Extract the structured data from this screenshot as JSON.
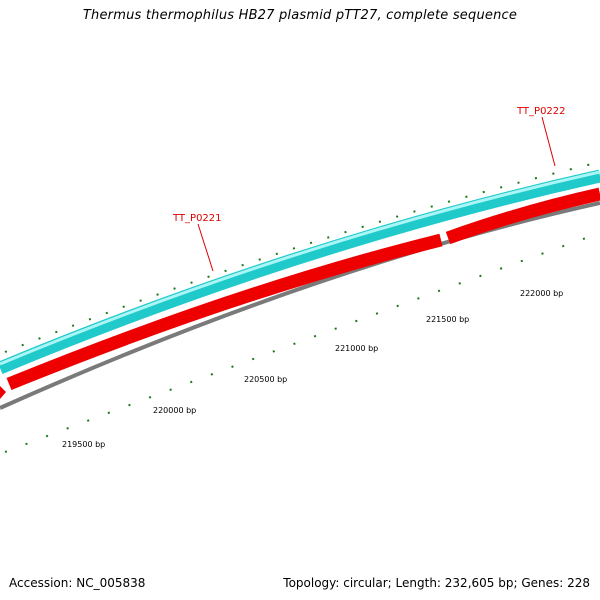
{
  "title": "Thermus thermophilus HB27 plasmid pTT27, complete sequence",
  "footer": {
    "accession": "Accession: NC_005838",
    "summary": "Topology: circular; Length: 232,605 bp; Genes: 228"
  },
  "genes": [
    {
      "label": "TT_P0221"
    },
    {
      "label": "TT_P0222"
    }
  ],
  "bp_ticks": [
    {
      "label": "219500 bp"
    },
    {
      "label": "220000 bp"
    },
    {
      "label": "220500 bp"
    },
    {
      "label": "221000 bp"
    },
    {
      "label": "221500 bp"
    },
    {
      "label": "222000 bp"
    }
  ],
  "colors": {
    "forward_gene": "#1ec8c8",
    "reverse_gene": "#ee0000",
    "backbone": "#808080",
    "tick": "#1a7a1a",
    "gene_label": "#e00000"
  }
}
